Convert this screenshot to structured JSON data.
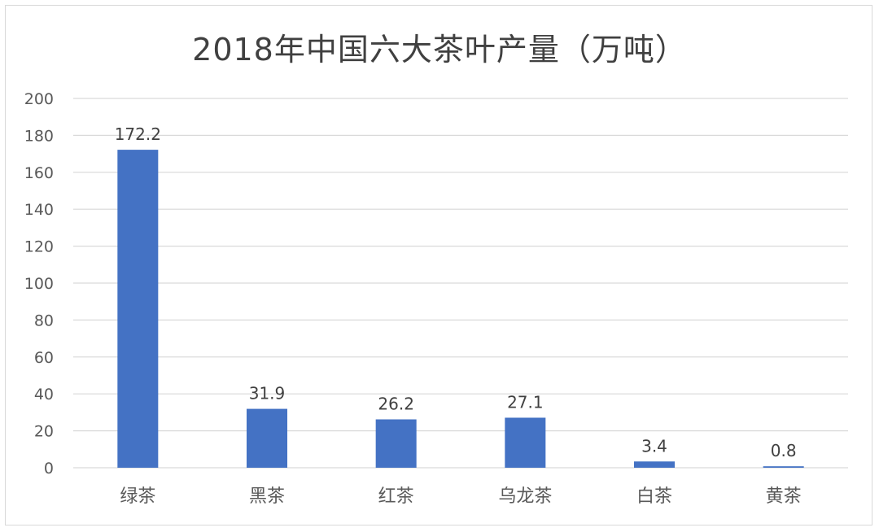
{
  "chart_data": {
    "type": "bar",
    "title": "2018年中国六大茶叶产量（万吨）",
    "categories": [
      "绿茶",
      "黑茶",
      "红茶",
      "乌龙茶",
      "白茶",
      "黄茶"
    ],
    "values": [
      172.2,
      31.9,
      26.2,
      27.1,
      3.4,
      0.8
    ],
    "data_labels": [
      "172.2",
      "31.9",
      "26.2",
      "27.1",
      "3.4",
      "0.8"
    ],
    "ylim": [
      0,
      200
    ],
    "yticks": [
      0,
      20,
      40,
      60,
      80,
      100,
      120,
      140,
      160,
      180,
      200
    ],
    "grid": true,
    "bar_color": "#4472C4",
    "grid_color": "#d9d9d9"
  }
}
